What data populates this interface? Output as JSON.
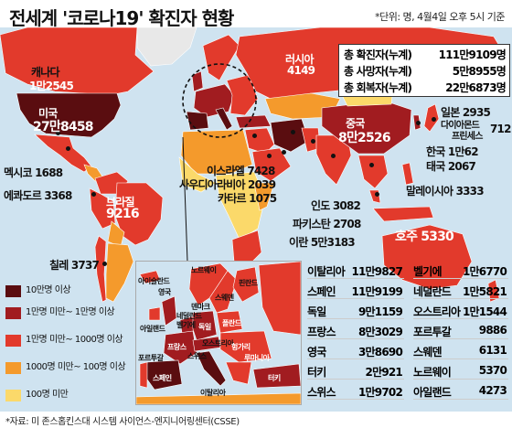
{
  "title": "전세계 '코로나19' 확진자 현황",
  "unit_note": "*단위: 명, 4월4일 오후 5시 기준",
  "colors": {
    "ocean": "#cfe3f0",
    "level1": "#5a0d10",
    "level2": "#a11c20",
    "level3": "#e23a2c",
    "level4": "#f49a2c",
    "level5": "#fbd96a",
    "nodata": "#e8e8e8"
  },
  "summary": [
    {
      "label": "총 확진자(누계)",
      "value": "111만9109명"
    },
    {
      "label": "총 사망자(누계)",
      "value": "5만8955명"
    },
    {
      "label": "총 회복자(누계)",
      "value": "22만6873명"
    }
  ],
  "map_labels": {
    "canada": "캐나다",
    "canada_val": "1만2545",
    "usa": "미국",
    "usa_val": "27만8458",
    "mexico": "멕시코 1688",
    "ecuador": "에콰도르 3368",
    "brazil": "브라질",
    "brazil_val": "9216",
    "chile": "칠레 3737",
    "russia": "러시아",
    "russia_val": "4149",
    "china": "중국",
    "china_val": "8만2526",
    "japan": "일본 2935",
    "diamond": "다이아몬드",
    "diamond2": "프린세스",
    "diamond_val": "712",
    "korea": "한국 1만62",
    "thailand": "태국 2067",
    "malaysia": "말레이시아 3333",
    "australia": "호주 5330",
    "israel": "이스라엘 7428",
    "saudi": "사우디아라비아 2039",
    "qatar": "카타르 1075",
    "india": "인도 3082",
    "pakistan": "파키스탄 2708",
    "iran": "이란 5만3183"
  },
  "legend": [
    {
      "label": "10만명 이상",
      "color": "#5a0d10"
    },
    {
      "label": "1만명 미만~ 1만명 이상",
      "color": "#a11c20"
    },
    {
      "label": "1만명 미만~ 1000명 이상",
      "color": "#e23a2c"
    },
    {
      "label": "1000명 미만~ 100명 이상",
      "color": "#f49a2c"
    },
    {
      "label": "100명 미만",
      "color": "#fbd96a"
    }
  ],
  "inset_labels": {
    "iceland": "아이슬란드",
    "norway": "노르웨이",
    "finland": "핀란드",
    "sweden": "스웨덴",
    "uk": "영국",
    "denmark": "덴마크",
    "netherlands": "네덜란드",
    "belgium": "벨기에",
    "ireland": "아일랜드",
    "germany": "독일",
    "poland": "폴란드",
    "france": "프랑스",
    "austria": "오스트리아",
    "swiss": "스위스",
    "italy": "이탈리아",
    "spain": "스페인",
    "portugal": "포르투갈",
    "turkey": "터키",
    "romania": "루마니아",
    "hungary": "헝가리"
  },
  "europe_table": [
    {
      "country": "이탈리아",
      "value": "11만9827"
    },
    {
      "country": "벨기에",
      "value": "1만6770"
    },
    {
      "country": "스페인",
      "value": "11만9199"
    },
    {
      "country": "네덜란드",
      "value": "1만5821"
    },
    {
      "country": "독일",
      "value": "9만1159"
    },
    {
      "country": "오스트리아",
      "value": "1만1544"
    },
    {
      "country": "프랑스",
      "value": "8만3029"
    },
    {
      "country": "포르투갈",
      "value": "9886"
    },
    {
      "country": "영국",
      "value": "3만8690"
    },
    {
      "country": "스웨덴",
      "value": "6131"
    },
    {
      "country": "터키",
      "value": "2만921"
    },
    {
      "country": "노르웨이",
      "value": "5370"
    },
    {
      "country": "스위스",
      "value": "1만9702"
    },
    {
      "country": "아일랜드",
      "value": "4273"
    }
  ],
  "source": "*자료: 미 존스홉킨스대 시스템 사이언스-엔지니어링센터(CSSE)"
}
